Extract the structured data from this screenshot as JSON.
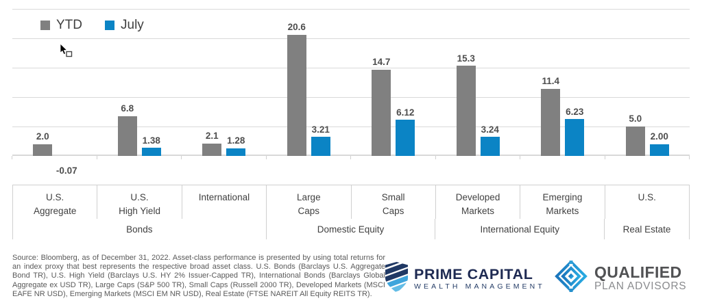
{
  "chart_data": {
    "type": "bar",
    "title": "",
    "categories": [
      "U.S. Aggregate",
      "U.S. High Yield",
      "International",
      "Large Caps",
      "Small Caps",
      "Developed Markets",
      "Emerging Markets",
      "U.S."
    ],
    "category_label_lines": [
      [
        "U.S.",
        "Aggregate"
      ],
      [
        "U.S.",
        "High Yield"
      ],
      [
        "International"
      ],
      [
        "Large",
        "Caps"
      ],
      [
        "Small",
        "Caps"
      ],
      [
        "Developed",
        "Markets"
      ],
      [
        "Emerging",
        "Markets"
      ],
      [
        "U.S."
      ]
    ],
    "category_groups": [
      {
        "label": "Bonds",
        "span": 3
      },
      {
        "label": "Domestic Equity",
        "span": 2
      },
      {
        "label": "International Equity",
        "span": 2
      },
      {
        "label": "Real Estate",
        "span": 1
      }
    ],
    "series": [
      {
        "name": "YTD",
        "color": "#808080",
        "values": [
          2.0,
          6.8,
          2.1,
          20.6,
          14.7,
          15.3,
          11.4,
          5.0
        ],
        "labels": [
          "2.0",
          "6.8",
          "2.1",
          "20.6",
          "14.7",
          "15.3",
          "11.4",
          "5.0"
        ]
      },
      {
        "name": "July",
        "color": "#0b84c5",
        "values": [
          -0.07,
          1.38,
          1.28,
          3.21,
          6.12,
          3.24,
          6.23,
          2.0
        ],
        "labels": [
          "-0.07",
          "1.38",
          "1.28",
          "3.21",
          "6.12",
          "3.24",
          "6.23",
          "2.00"
        ]
      }
    ],
    "ylim": [
      0,
      25
    ],
    "gridline_interval": 5,
    "grid": true,
    "y_axis_labels_visible": false,
    "legend_position": "top-left inside plot"
  },
  "legend": {
    "items": [
      {
        "label": "YTD",
        "color": "#808080"
      },
      {
        "label": "July",
        "color": "#0b84c5"
      }
    ]
  },
  "colors": {
    "gridline": "#d9d9d9",
    "axis_line": "#d8d8d8",
    "table_border": "#cfcfcf",
    "value_label_text": "#4d4d4d",
    "category_text": "#404040"
  },
  "footer": {
    "source_text": "Source: Bloomberg, as of December 31, 2022. Asset-class performance is presented by using total returns for an index proxy that best represents the respective broad asset class. U.S. Bonds (Barclays U.S. Aggregate Bond TR), U.S. High Yield (Barclays U.S. HY 2% Issuer-Capped TR), International Bonds (Barclays Global Aggregate ex USD TR), Large Caps (S&P 500 TR), Small Caps (Russell 2000 TR), Developed Markets (MSCI EAFE NR USD), Emerging Markets (MSCI EM NR USD), Real Estate (FTSE NAREIT All Equity REITS TR)."
  },
  "logos": {
    "prime_capital": {
      "name": "PRIME CAPITAL",
      "tagline": "WEALTH MANAGEMENT",
      "navy": "#1f3864",
      "light_blue": "#3fa5dc"
    },
    "qualified_plan_advisors": {
      "name": "QUALIFIED",
      "tagline": "PLAN ADVISORS",
      "blue_dark": "#1b75bc",
      "blue_light": "#29abe2"
    }
  }
}
